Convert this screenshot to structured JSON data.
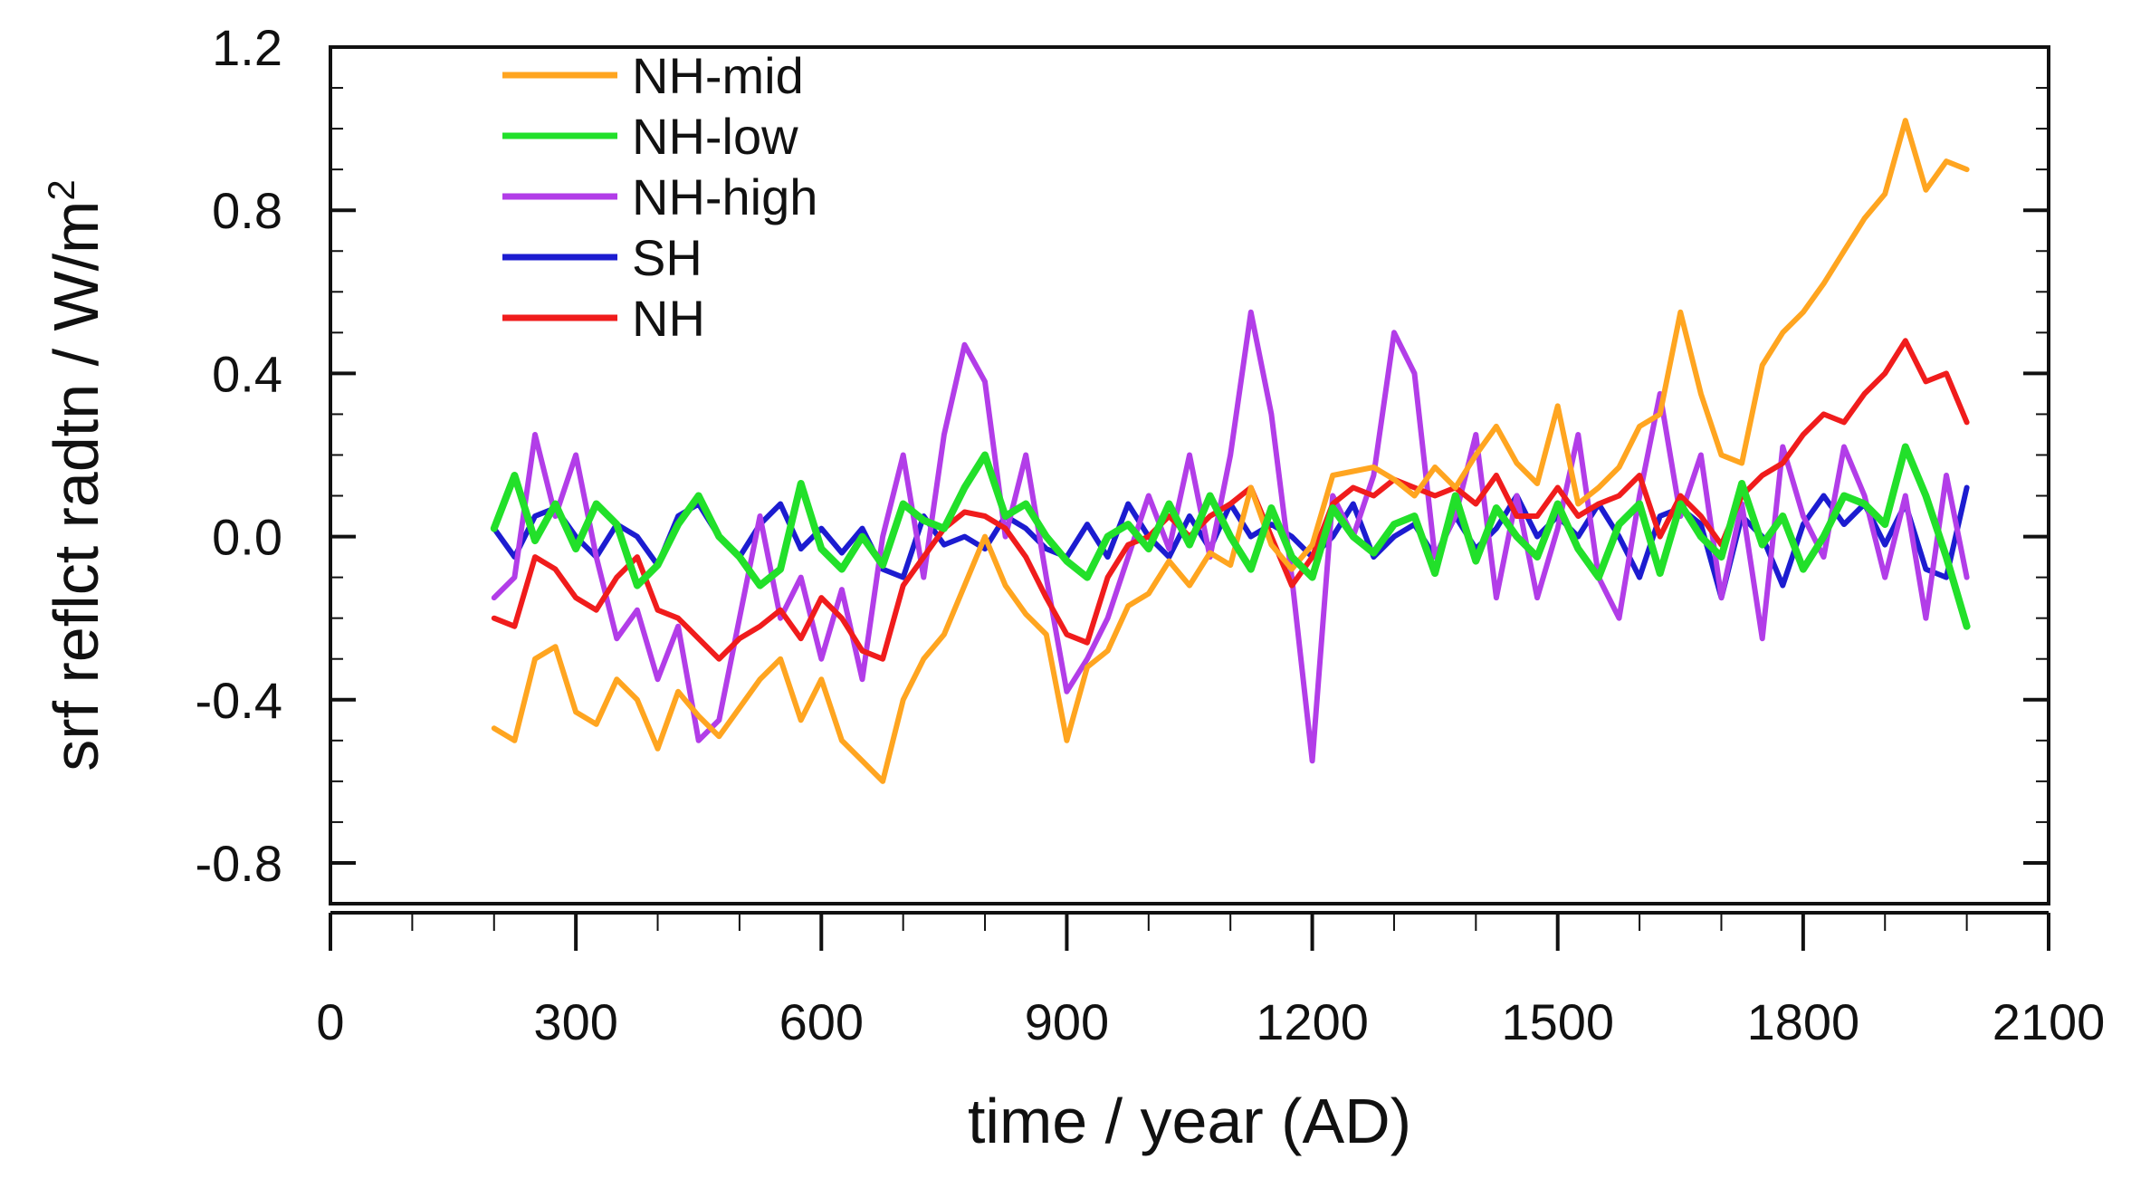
{
  "chart_data": {
    "type": "line",
    "title": "",
    "xlabel": "time / year (AD)",
    "ylabel_main": "srf reflct radtn / W/m",
    "ylabel_sup": "2",
    "xlim": [
      0,
      2100
    ],
    "ylim": [
      -0.9,
      1.2
    ],
    "x_ticks": [
      0,
      300,
      600,
      900,
      1200,
      1500,
      1800,
      2100
    ],
    "x_tick_labels": [
      "0",
      "300",
      "600",
      "900",
      "1200",
      "1500",
      "1800",
      "2100"
    ],
    "y_ticks": [
      -0.8,
      -0.4,
      0.0,
      0.4,
      0.8,
      1.2
    ],
    "y_tick_labels": [
      "-0.8",
      "-0.4",
      "0.0",
      "0.4",
      "0.8",
      "1.2"
    ],
    "legend_position": "top-left",
    "x": [
      200,
      225,
      250,
      275,
      300,
      325,
      350,
      375,
      400,
      425,
      450,
      475,
      500,
      525,
      550,
      575,
      600,
      625,
      650,
      675,
      700,
      725,
      750,
      775,
      800,
      825,
      850,
      875,
      900,
      925,
      950,
      975,
      1000,
      1025,
      1050,
      1075,
      1100,
      1125,
      1150,
      1175,
      1200,
      1225,
      1250,
      1275,
      1300,
      1325,
      1350,
      1375,
      1400,
      1425,
      1450,
      1475,
      1500,
      1525,
      1550,
      1575,
      1600,
      1625,
      1650,
      1675,
      1700,
      1725,
      1750,
      1775,
      1800,
      1825,
      1850,
      1875,
      1900,
      1925,
      1950,
      1975,
      2000
    ],
    "series": [
      {
        "name": "NH-mid",
        "color": "#ffa520",
        "values": [
          -0.47,
          -0.5,
          -0.3,
          -0.27,
          -0.43,
          -0.46,
          -0.35,
          -0.4,
          -0.52,
          -0.38,
          -0.44,
          -0.49,
          -0.42,
          -0.35,
          -0.3,
          -0.45,
          -0.35,
          -0.5,
          -0.55,
          -0.6,
          -0.4,
          -0.3,
          -0.24,
          -0.12,
          0.0,
          -0.12,
          -0.19,
          -0.24,
          -0.5,
          -0.32,
          -0.28,
          -0.17,
          -0.14,
          -0.06,
          -0.12,
          -0.04,
          -0.07,
          0.12,
          -0.02,
          -0.08,
          -0.02,
          0.15,
          0.16,
          0.17,
          0.14,
          0.1,
          0.17,
          0.12,
          0.2,
          0.27,
          0.18,
          0.13,
          0.32,
          0.08,
          0.12,
          0.17,
          0.27,
          0.3,
          0.55,
          0.35,
          0.2,
          0.18,
          0.42,
          0.5,
          0.55,
          0.62,
          0.7,
          0.78,
          0.84,
          1.02,
          0.85,
          0.92,
          0.9
        ]
      },
      {
        "name": "NH-low",
        "color": "#22e02a",
        "values": [
          0.02,
          0.15,
          -0.01,
          0.08,
          -0.03,
          0.08,
          0.03,
          -0.12,
          -0.07,
          0.03,
          0.1,
          0.0,
          -0.05,
          -0.12,
          -0.08,
          0.13,
          -0.03,
          -0.08,
          0.0,
          -0.07,
          0.08,
          0.04,
          0.02,
          0.12,
          0.2,
          0.05,
          0.08,
          0.0,
          -0.06,
          -0.1,
          0.0,
          0.03,
          -0.03,
          0.08,
          -0.02,
          0.1,
          0.0,
          -0.08,
          0.07,
          -0.05,
          -0.1,
          0.07,
          0.0,
          -0.04,
          0.03,
          0.05,
          -0.09,
          0.1,
          -0.06,
          0.07,
          0.0,
          -0.05,
          0.08,
          -0.03,
          -0.1,
          0.03,
          0.08,
          -0.09,
          0.08,
          0.0,
          -0.05,
          0.13,
          -0.02,
          0.05,
          -0.08,
          0.0,
          0.1,
          0.08,
          0.03,
          0.22,
          0.1,
          -0.05,
          -0.22
        ]
      },
      {
        "name": "NH-high",
        "color": "#b23de8",
        "values": [
          -0.15,
          -0.1,
          0.25,
          0.05,
          0.2,
          -0.05,
          -0.25,
          -0.18,
          -0.35,
          -0.22,
          -0.5,
          -0.45,
          -0.2,
          0.05,
          -0.2,
          -0.1,
          -0.3,
          -0.13,
          -0.35,
          0.0,
          0.2,
          -0.1,
          0.25,
          0.47,
          0.38,
          0.0,
          0.2,
          -0.1,
          -0.38,
          -0.3,
          -0.2,
          -0.05,
          0.1,
          -0.03,
          0.2,
          -0.05,
          0.2,
          0.55,
          0.3,
          -0.1,
          -0.55,
          0.1,
          0.0,
          0.15,
          0.5,
          0.4,
          -0.05,
          0.05,
          0.25,
          -0.15,
          0.1,
          -0.15,
          0.02,
          0.25,
          -0.1,
          -0.2,
          0.1,
          0.35,
          0.05,
          0.2,
          -0.15,
          0.08,
          -0.25,
          0.22,
          0.05,
          -0.05,
          0.22,
          0.1,
          -0.1,
          0.1,
          -0.2,
          0.15,
          -0.1
        ]
      },
      {
        "name": "SH",
        "color": "#1c1cd0",
        "values": [
          0.02,
          -0.05,
          0.05,
          0.07,
          0.0,
          -0.05,
          0.03,
          0.0,
          -0.07,
          0.05,
          0.08,
          0.0,
          -0.05,
          0.03,
          0.08,
          -0.03,
          0.02,
          -0.04,
          0.02,
          -0.08,
          -0.1,
          0.05,
          -0.02,
          0.0,
          -0.03,
          0.05,
          0.02,
          -0.03,
          -0.05,
          0.03,
          -0.05,
          0.08,
          0.0,
          -0.05,
          0.05,
          -0.03,
          0.08,
          0.0,
          0.03,
          0.0,
          -0.05,
          0.0,
          0.08,
          -0.05,
          0.0,
          0.03,
          -0.05,
          0.05,
          -0.03,
          0.02,
          0.1,
          0.0,
          0.05,
          0.0,
          0.08,
          0.0,
          -0.1,
          0.05,
          0.07,
          0.03,
          -0.15,
          0.05,
          0.0,
          -0.12,
          0.03,
          0.1,
          0.03,
          0.08,
          -0.02,
          0.08,
          -0.08,
          -0.1,
          0.12
        ]
      },
      {
        "name": "NH",
        "color": "#f01c1c",
        "values": [
          -0.2,
          -0.22,
          -0.05,
          -0.08,
          -0.15,
          -0.18,
          -0.1,
          -0.05,
          -0.18,
          -0.2,
          -0.25,
          -0.3,
          -0.25,
          -0.22,
          -0.18,
          -0.25,
          -0.15,
          -0.2,
          -0.28,
          -0.3,
          -0.12,
          -0.05,
          0.02,
          0.06,
          0.05,
          0.02,
          -0.05,
          -0.15,
          -0.24,
          -0.26,
          -0.1,
          -0.02,
          0.0,
          0.05,
          0.0,
          0.05,
          0.08,
          0.12,
          0.0,
          -0.12,
          -0.05,
          0.08,
          0.12,
          0.1,
          0.14,
          0.12,
          0.1,
          0.12,
          0.08,
          0.15,
          0.05,
          0.05,
          0.12,
          0.05,
          0.08,
          0.1,
          0.15,
          0.0,
          0.1,
          0.05,
          -0.02,
          0.1,
          0.15,
          0.18,
          0.25,
          0.3,
          0.28,
          0.35,
          0.4,
          0.48,
          0.38,
          0.4,
          0.28
        ]
      }
    ]
  }
}
